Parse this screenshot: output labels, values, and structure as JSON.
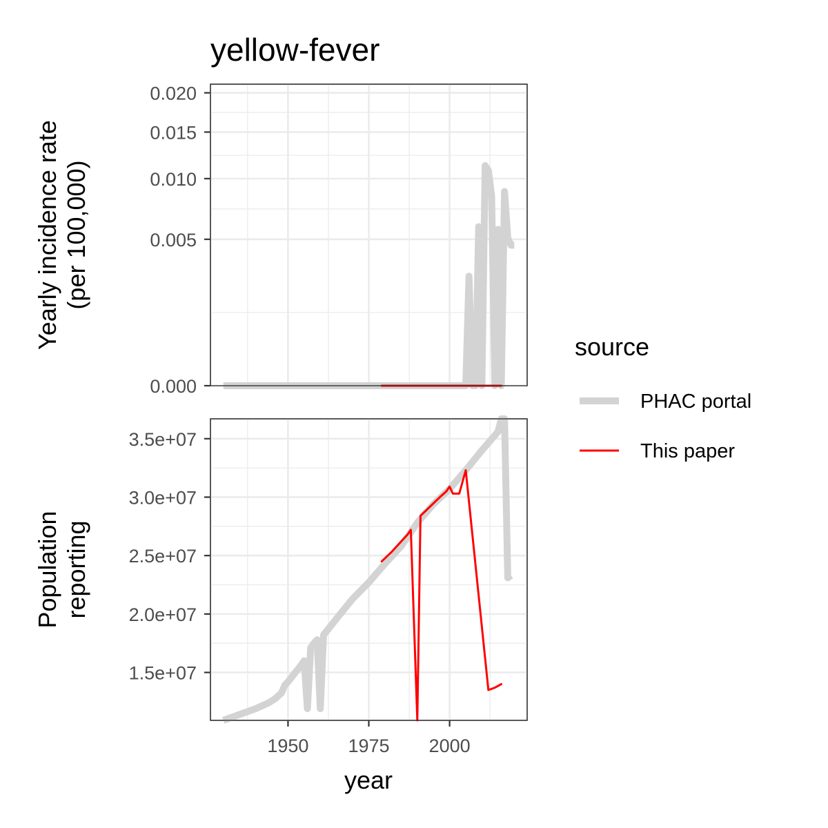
{
  "title": "yellow-fever",
  "legend": {
    "title": "source",
    "items": [
      {
        "label": "PHAC portal",
        "color": "#d3d3d3",
        "style": "thick"
      },
      {
        "label": "This paper",
        "color": "#ff0000",
        "style": "thin"
      }
    ]
  },
  "chart_data": [
    {
      "type": "line",
      "panel": "top",
      "ylabel": "Yearly incidence rate\n(per 100,000)",
      "xlim": [
        1926,
        2024
      ],
      "ylim": [
        0,
        0.0212
      ],
      "y_scale": "sqrt",
      "y_ticks": [
        0,
        0.005,
        0.01,
        0.015,
        0.02
      ],
      "y_tick_labels": [
        "0.000",
        "0.005",
        "0.010",
        "0.015",
        "0.020"
      ],
      "grid": true,
      "series": [
        {
          "name": "PHAC portal",
          "x": [
            1930,
            2005,
            2006,
            2007,
            2008,
            2009,
            2010,
            2011,
            2012,
            2013,
            2014,
            2015,
            2016,
            2017,
            2018,
            2019,
            2020
          ],
          "y": [
            0,
            0,
            0.0028,
            0,
            0,
            0.0059,
            0,
            0.0113,
            0.0108,
            0.0084,
            0,
            0.0057,
            0,
            0.0088,
            0.0051,
            0.0046,
            0.0046
          ]
        },
        {
          "name": "This paper",
          "x": [
            1979,
            2016
          ],
          "y": [
            0,
            0
          ]
        }
      ]
    },
    {
      "type": "line",
      "panel": "bottom",
      "xlabel": "year",
      "ylabel": "Population\nreporting",
      "xlim": [
        1926,
        2024
      ],
      "ylim": [
        10900000,
        36700000
      ],
      "x_ticks": [
        1950,
        1975,
        2000
      ],
      "x_tick_labels": [
        "1950",
        "1975",
        "2000"
      ],
      "y_ticks": [
        15000000,
        20000000,
        25000000,
        30000000,
        35000000
      ],
      "y_tick_labels": [
        "1.5e+07",
        "2.0e+07",
        "2.5e+07",
        "3.0e+07",
        "3.5e+07"
      ],
      "grid": true,
      "series": [
        {
          "name": "PHAC portal",
          "x": [
            1930,
            1932,
            1934,
            1936,
            1938,
            1940,
            1942,
            1944,
            1946,
            1948,
            1949,
            1950,
            1952,
            1954,
            1955,
            1956,
            1957,
            1958,
            1959,
            1960,
            1961,
            1965,
            1970,
            1975,
            1980,
            1985,
            1990,
            1995,
            2000,
            2005,
            2010,
            2015,
            2016,
            2017,
            2018,
            2019
          ],
          "y": [
            10900000,
            11100000,
            11300000,
            11500000,
            11700000,
            11900000,
            12150000,
            12400000,
            12750000,
            13250000,
            13900000,
            14200000,
            14900000,
            15600000,
            16000000,
            11900000,
            17100000,
            17500000,
            17800000,
            11900000,
            18200000,
            19600000,
            21300000,
            22700000,
            24300000,
            25800000,
            27800000,
            29400000,
            30700000,
            32300000,
            34000000,
            35600000,
            36700000,
            36700000,
            23100000,
            23300000
          ]
        },
        {
          "name": "This paper",
          "x": [
            1979,
            1982,
            1985,
            1987,
            1988,
            1990,
            1991,
            1994,
            1997,
            1999,
            2000,
            2001,
            2003,
            2005,
            2012,
            2014,
            2016
          ],
          "y": [
            24500000,
            25300000,
            26200000,
            26800000,
            27200000,
            10900000,
            28400000,
            29200000,
            30000000,
            30500000,
            30900000,
            30300000,
            30300000,
            32300000,
            13500000,
            13700000,
            14000000
          ]
        }
      ]
    }
  ]
}
